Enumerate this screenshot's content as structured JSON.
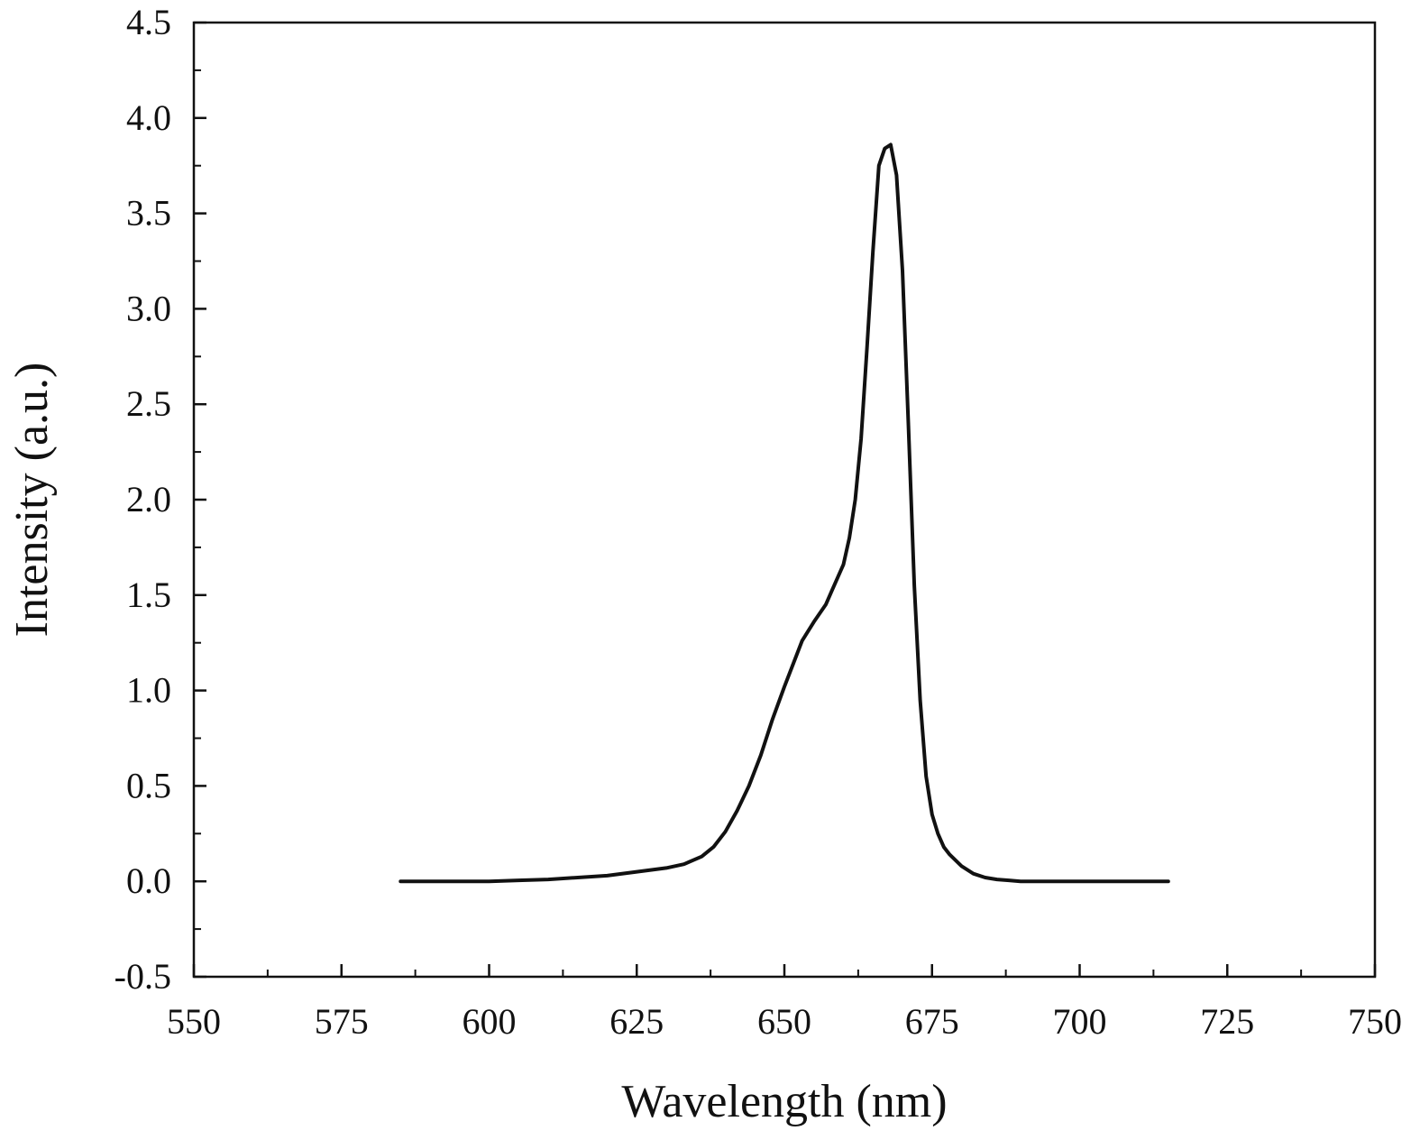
{
  "chart_data": {
    "type": "line",
    "title": "",
    "xlabel": "Wavelength (nm)",
    "ylabel": "Intensity (a.u.)",
    "xlim": [
      550,
      750
    ],
    "ylim": [
      -0.5,
      4.5
    ],
    "x_ticks": [
      "550",
      "575",
      "600",
      "625",
      "650",
      "675",
      "700",
      "725",
      "750"
    ],
    "y_ticks": [
      "-0.5",
      "0.0",
      "0.5",
      "1.0",
      "1.5",
      "2.0",
      "2.5",
      "3.0",
      "3.5",
      "4.0",
      "4.5"
    ],
    "grid": false,
    "legend": "none",
    "line_color": "#111111",
    "series": [
      {
        "x": [
          585,
          590,
          595,
          600,
          605,
          610,
          615,
          620,
          625,
          630,
          633,
          636,
          638,
          640,
          642,
          644,
          646,
          648,
          650,
          652,
          653,
          655,
          657,
          658,
          660,
          661,
          662,
          663,
          664,
          665,
          666,
          667,
          668,
          669,
          670,
          671,
          672,
          673,
          674,
          675,
          676,
          677,
          678,
          680,
          682,
          684,
          686,
          688,
          690,
          695,
          700,
          705,
          710,
          715
        ],
        "y": [
          0.0,
          0.0,
          0.0,
          0.0,
          0.005,
          0.01,
          0.02,
          0.03,
          0.05,
          0.07,
          0.09,
          0.13,
          0.18,
          0.26,
          0.37,
          0.5,
          0.66,
          0.85,
          1.02,
          1.18,
          1.26,
          1.36,
          1.45,
          1.52,
          1.66,
          1.8,
          2.0,
          2.32,
          2.8,
          3.3,
          3.75,
          3.84,
          3.86,
          3.7,
          3.2,
          2.4,
          1.55,
          0.95,
          0.55,
          0.35,
          0.25,
          0.18,
          0.14,
          0.08,
          0.04,
          0.02,
          0.01,
          0.005,
          0.0,
          0.0,
          0.0,
          0.0,
          0.0,
          0.0
        ]
      }
    ]
  }
}
